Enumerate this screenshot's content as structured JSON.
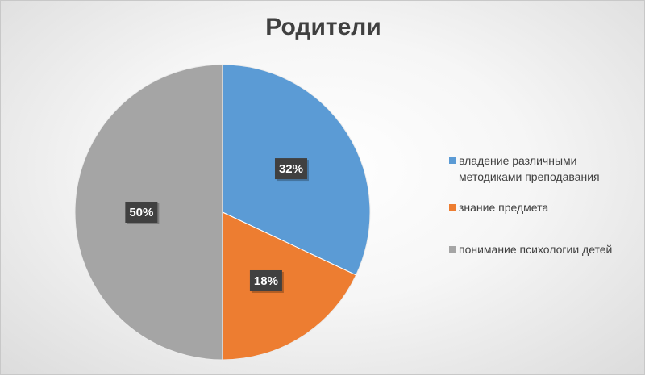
{
  "chart_data": {
    "type": "pie",
    "title": "Родители",
    "categories": [
      "владение различными методиками преподавания",
      "знание предмета",
      "понимание психологии детей"
    ],
    "values": [
      32,
      18,
      50
    ],
    "data_labels": [
      "32%",
      "18%",
      "50%"
    ],
    "colors": [
      "#5b9bd5",
      "#ed7d31",
      "#a5a5a5"
    ],
    "legend_position": "right"
  },
  "legend": {
    "items": [
      {
        "label_line1": "владение различными",
        "label_line2": "методиками преподавания"
      },
      {
        "label_line1": "знание предмета",
        "label_line2": ""
      },
      {
        "label_line1": "понимание психологии детей",
        "label_line2": ""
      }
    ]
  }
}
